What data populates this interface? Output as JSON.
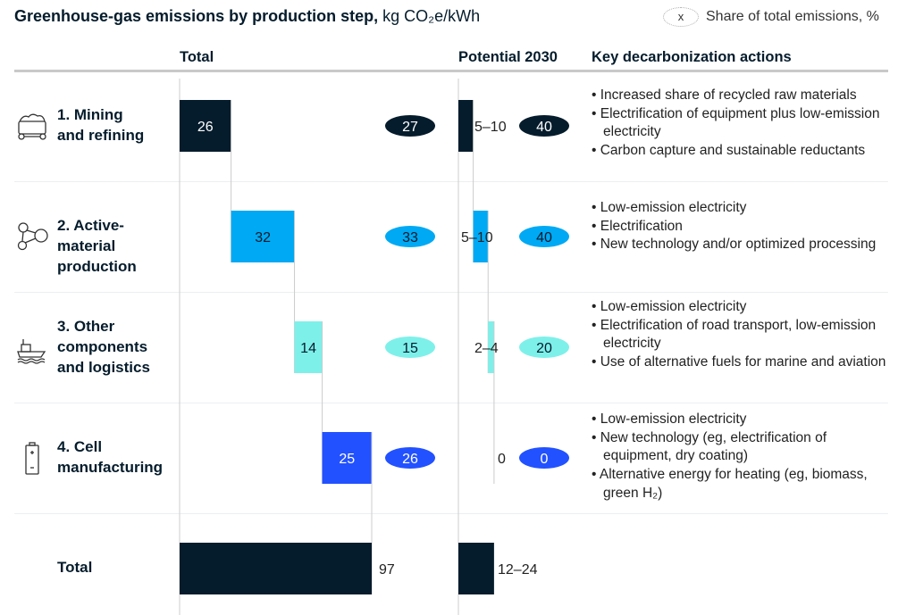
{
  "header": {
    "title_bold": "Greenhouse-gas emissions by production step,",
    "title_unit": " kg CO₂e/kWh",
    "legend_symbol": "x",
    "legend_label": "Share of total emissions, %"
  },
  "columns": {
    "total": "Total",
    "potential": "Potential 2030",
    "actions": "Key decarbonization actions"
  },
  "chart_data": {
    "type": "bar",
    "subtype": "waterfall",
    "title": "Greenhouse-gas emissions by production step, kg CO₂e/kWh",
    "categories": [
      "1. Mining and refining",
      "2. Active-material production",
      "3. Other components and logistics",
      "4. Cell manufacturing",
      "Total"
    ],
    "series": [
      {
        "name": "Total",
        "values": [
          26,
          32,
          14,
          25,
          97
        ],
        "labels": [
          "26",
          "32",
          "14",
          "25",
          "97"
        ]
      },
      {
        "name": "Potential 2030",
        "low": [
          5,
          5,
          2,
          0,
          12
        ],
        "high": [
          10,
          10,
          4,
          0,
          24
        ],
        "labels": [
          "5–10",
          "5–10",
          "2–4",
          "0",
          "12–24"
        ]
      }
    ],
    "share_total_pct": [
      "27",
      "33",
      "15",
      "26"
    ],
    "share_potential_pct": [
      "40",
      "40",
      "20",
      "0"
    ],
    "colors": [
      "#051c2c",
      "#00a9f4",
      "#7ef0ea",
      "#2251ff",
      "#051c2c"
    ]
  },
  "rows": [
    {
      "label_lines": [
        "1. Mining",
        "and refining"
      ],
      "icon": "mining-cart-icon",
      "actions": [
        "Increased share of recycled raw materials",
        "Electrification of equipment plus low-emission electricity",
        "Carbon capture and sustainable reductants"
      ]
    },
    {
      "label_lines": [
        "2. Active-",
        "material",
        "production"
      ],
      "icon": "molecule-icon",
      "actions": [
        "Low-emission electricity",
        "Electrification",
        "New technology and/or optimized processing"
      ]
    },
    {
      "label_lines": [
        "3. Other",
        "components",
        "and logistics"
      ],
      "icon": "ship-icon",
      "actions": [
        "Low-emission electricity",
        "Electrification of road transport, low-emission electricity",
        "Use of alternative fuels for marine and aviation"
      ]
    },
    {
      "label_lines": [
        "4. Cell",
        "manufacturing"
      ],
      "icon": "battery-icon",
      "actions": [
        "Low-emission electricity",
        "New technology (eg, electrification of equipment, dry coating)",
        "Alternative energy for heating (eg, biomass, green H₂)"
      ]
    }
  ],
  "total_row": {
    "label": "Total"
  }
}
